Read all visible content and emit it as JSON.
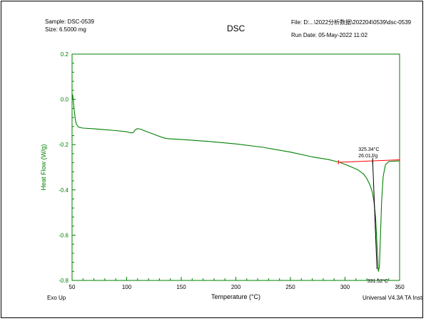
{
  "header": {
    "sample": "Sample: DSC-0539",
    "size": "Size:  6.5000 mg",
    "file": "File: D:...\\2022分析数据\\202204\\0539\\dsc-0539",
    "run_date": "Run Date: 05-May-2022 11:02"
  },
  "footer": {
    "left": "Exo Up",
    "right": "Universal V4.3A TA Instruments"
  },
  "chart_data": {
    "type": "line",
    "title": "DSC",
    "xlabel": "Temperature (°C)",
    "ylabel": "Heat Flow (W/g)",
    "xlim": [
      50,
      350
    ],
    "ylim": [
      -0.8,
      0.2
    ],
    "x_ticks": [
      50,
      100,
      150,
      200,
      250,
      300,
      350
    ],
    "y_ticks": [
      0.2,
      0.0,
      -0.2,
      -0.4,
      -0.6,
      -0.8
    ],
    "x_tick_labels": [
      "50",
      "100",
      "150",
      "200",
      "250",
      "300",
      "350"
    ],
    "y_tick_labels": [
      "0.2",
      "0.0",
      "-0.2",
      "-0.4",
      "-0.6",
      "-0.8"
    ],
    "grid": false,
    "colors": {
      "curve": "#008000",
      "baseline": "#ff0000",
      "annotation": "#000000",
      "axes": "#008000"
    },
    "series": [
      {
        "x": [
          50,
          50.5,
          51,
          52,
          53,
          54,
          56,
          60,
          70,
          80,
          90,
          100,
          104,
          106,
          108,
          110,
          113,
          117,
          122,
          128,
          134,
          138,
          150,
          175,
          200,
          225,
          250,
          270,
          285,
          295,
          305,
          312,
          317,
          320,
          323,
          325,
          326.5,
          328,
          329.5,
          330.5,
          331.5,
          332.5,
          333.5,
          335,
          337,
          340,
          345,
          350
        ],
        "y": [
          0.0,
          0.02,
          0.0,
          -0.05,
          -0.09,
          -0.11,
          -0.123,
          -0.127,
          -0.13,
          -0.134,
          -0.138,
          -0.143,
          -0.148,
          -0.147,
          -0.134,
          -0.129,
          -0.132,
          -0.14,
          -0.149,
          -0.16,
          -0.17,
          -0.174,
          -0.177,
          -0.186,
          -0.197,
          -0.212,
          -0.233,
          -0.254,
          -0.266,
          -0.278,
          -0.297,
          -0.312,
          -0.33,
          -0.35,
          -0.38,
          -0.41,
          -0.45,
          -0.52,
          -0.66,
          -0.76,
          -0.74,
          -0.6,
          -0.45,
          -0.34,
          -0.29,
          -0.275,
          -0.273,
          -0.272
        ]
      }
    ],
    "baseline": {
      "x": [
        294,
        350
      ],
      "y": [
        -0.278,
        -0.267
      ]
    },
    "annotations": [
      {
        "lines": [
          "325.34°C",
          "26.01J/g"
        ],
        "x": 325.34
      },
      {
        "lines": [
          "331.52°C"
        ],
        "x": 331.52
      }
    ]
  }
}
